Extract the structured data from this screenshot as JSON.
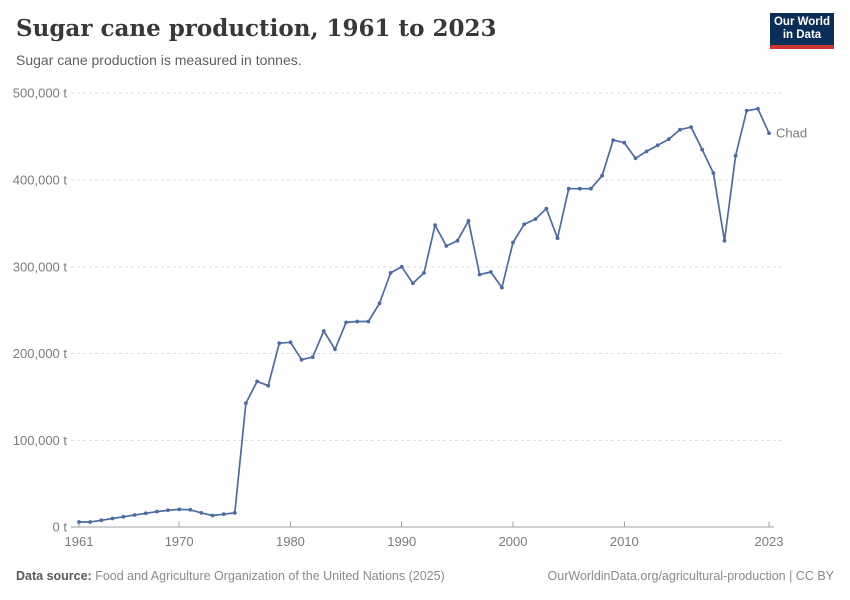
{
  "header": {
    "title": "Sugar cane production, 1961 to 2023",
    "subtitle": "Sugar cane production is measured in tonnes.",
    "logo": {
      "line1": "Our World",
      "line2": "in Data"
    }
  },
  "chart_data": {
    "type": "line",
    "title": "Sugar cane production, 1961 to 2023",
    "xlabel": "",
    "ylabel": "",
    "unit": "t",
    "xlim": [
      1961,
      2023
    ],
    "ylim": [
      0,
      500000
    ],
    "grid": "horizontal-dashed",
    "legend_position": "end-of-line-label",
    "y_ticks": [
      {
        "value": 0,
        "label": "0 t"
      },
      {
        "value": 100000,
        "label": "100,000 t"
      },
      {
        "value": 200000,
        "label": "200,000 t"
      },
      {
        "value": 300000,
        "label": "300,000 t"
      },
      {
        "value": 400000,
        "label": "400,000 t"
      },
      {
        "value": 500000,
        "label": "500,000 t"
      }
    ],
    "x_ticks": [
      {
        "value": 1961,
        "label": "1961"
      },
      {
        "value": 1970,
        "label": "1970"
      },
      {
        "value": 1980,
        "label": "1980"
      },
      {
        "value": 1990,
        "label": "1990"
      },
      {
        "value": 2000,
        "label": "2000"
      },
      {
        "value": 2010,
        "label": "2010"
      },
      {
        "value": 2023,
        "label": "2023"
      }
    ],
    "series": [
      {
        "name": "Chad",
        "color": "#4c6ba6",
        "x": [
          1961,
          1962,
          1963,
          1964,
          1965,
          1966,
          1967,
          1968,
          1969,
          1970,
          1971,
          1972,
          1973,
          1974,
          1975,
          1976,
          1977,
          1978,
          1979,
          1980,
          1981,
          1982,
          1983,
          1984,
          1985,
          1986,
          1987,
          1988,
          1989,
          1990,
          1991,
          1992,
          1993,
          1994,
          1995,
          1996,
          1997,
          1998,
          1999,
          2000,
          2001,
          2002,
          2003,
          2004,
          2005,
          2006,
          2007,
          2008,
          2009,
          2010,
          2011,
          2012,
          2013,
          2014,
          2015,
          2016,
          2017,
          2018,
          2019,
          2020,
          2021,
          2022,
          2023
        ],
        "values": [
          6000,
          6000,
          8000,
          10000,
          12000,
          14000,
          16000,
          18000,
          19500,
          20500,
          20000,
          16500,
          13500,
          15000,
          16500,
          143000,
          168000,
          163000,
          212000,
          213000,
          193000,
          196000,
          226000,
          205000,
          236000,
          237000,
          237000,
          258000,
          293000,
          300000,
          281000,
          293000,
          348000,
          324000,
          330000,
          353000,
          291000,
          294000,
          276000,
          328000,
          349000,
          355000,
          367000,
          333000,
          390000,
          390000,
          390000,
          405000,
          446000,
          443000,
          425000,
          433000,
          440000,
          447000,
          458000,
          461000,
          435000,
          408000,
          330000,
          428000,
          480000,
          482000,
          454000
        ]
      }
    ]
  },
  "footer": {
    "source_label": "Data source:",
    "source_text": " Food and Agriculture Organization of the United Nations (2025)",
    "credit": "OurWorldinData.org/agricultural-production | CC BY"
  },
  "colors": {
    "series": "#4c6ba6",
    "axis_text": "#7b7b7b",
    "gridline": "#dcdcdc",
    "axis_line": "#a1a1a1",
    "logo_bg": "#0b2e59",
    "logo_accent": "#cc3333"
  }
}
